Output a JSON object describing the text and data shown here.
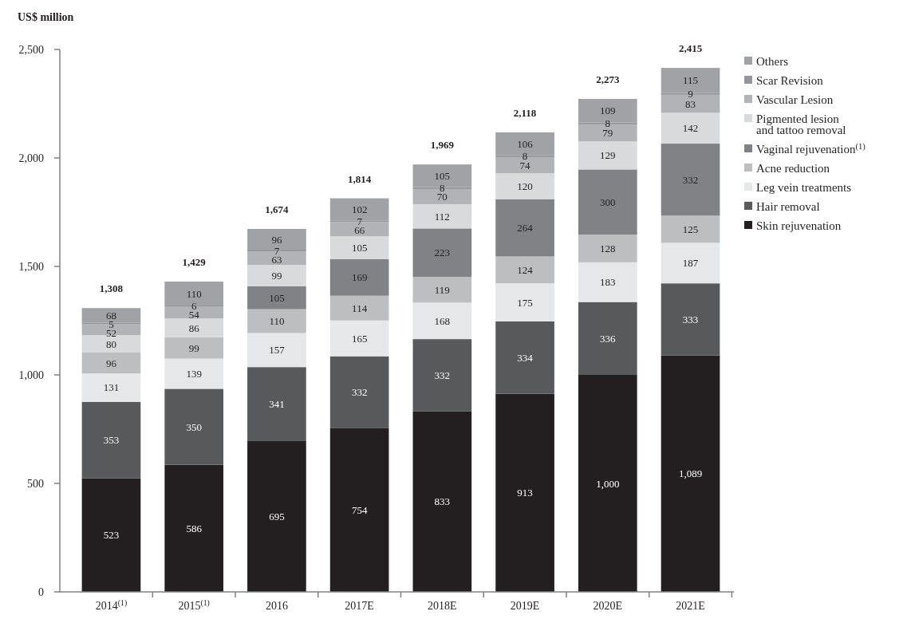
{
  "chart_data": {
    "type": "bar",
    "stacked": true,
    "ylabel": "US$ million",
    "categories": [
      "2014$^{(1)}$",
      "2015$^{(1)}$",
      "2016",
      "2017E",
      "2018E",
      "2019E",
      "2020E",
      "2021E"
    ],
    "series": [
      {
        "name": "Skin rejuvenation",
        "color": "#231f20",
        "values": [
          523,
          586,
          695,
          754,
          833,
          913,
          1000,
          1089
        ],
        "value_labels": [
          "523",
          "586",
          "695",
          "754",
          "833",
          "913",
          "1,000",
          "1,089"
        ]
      },
      {
        "name": "Hair removal",
        "color": "#58595b",
        "values": [
          353,
          350,
          341,
          332,
          332,
          334,
          336,
          333
        ],
        "value_labels": [
          "353",
          "350",
          "341",
          "332",
          "332",
          "334",
          "336",
          "333"
        ]
      },
      {
        "name": "Leg vein treatments",
        "color": "#e6e7e8",
        "values": [
          131,
          139,
          157,
          165,
          168,
          175,
          183,
          187
        ],
        "value_labels": [
          "131",
          "139",
          "157",
          "165",
          "168",
          "175",
          "183",
          "187"
        ]
      },
      {
        "name": "Acne reduction",
        "color": "#bcbec0",
        "values": [
          96,
          99,
          110,
          114,
          119,
          124,
          128,
          125
        ],
        "value_labels": [
          "96",
          "99",
          "110",
          "114",
          "119",
          "124",
          "128",
          "125"
        ]
      },
      {
        "name": "Vaginal rejuvenation$^{(1)}$",
        "color": "#808285",
        "values": [
          null,
          null,
          105,
          169,
          223,
          264,
          300,
          332
        ],
        "value_labels": [
          null,
          null,
          "105",
          "169",
          "223",
          "264",
          "300",
          "332"
        ]
      },
      {
        "name": "Pigmented lesion\nand tattoo removal",
        "color": "#d9dadb",
        "values": [
          80,
          86,
          99,
          105,
          112,
          120,
          129,
          142
        ],
        "value_labels": [
          "80",
          "86",
          "99",
          "105",
          "112",
          "120",
          "129",
          "142"
        ]
      },
      {
        "name": "Vascular Lesion",
        "color": "#b1b3b6",
        "values": [
          52,
          54,
          63,
          66,
          70,
          74,
          79,
          83
        ],
        "value_labels": [
          "52",
          "54",
          "63",
          "66",
          "70",
          "74",
          "79",
          "83"
        ]
      },
      {
        "name": "Scar Revision",
        "color": "#939598",
        "values": [
          5,
          6,
          7,
          7,
          8,
          8,
          8,
          9
        ],
        "value_labels": [
          "5",
          "6",
          "7",
          "7",
          "8",
          "8",
          "8",
          "9"
        ]
      },
      {
        "name": "Others",
        "color": "#a0a2a5",
        "values": [
          68,
          110,
          96,
          102,
          105,
          106,
          109,
          115
        ],
        "value_labels": [
          "68",
          "110",
          "96",
          "102",
          "105",
          "106",
          "109",
          "115"
        ]
      }
    ],
    "ylim": [
      0,
      2500
    ],
    "yticks": [
      {
        "value": 0,
        "label": "0"
      },
      {
        "value": 500,
        "label": "500"
      },
      {
        "value": 1000,
        "label": "1,000"
      },
      {
        "value": 1500,
        "label": "1,500"
      },
      {
        "value": 2000,
        "label": "2,000"
      },
      {
        "value": 2500,
        "label": "2,500"
      }
    ],
    "totals": [
      "1,308",
      "1,429",
      "1,674",
      "1,814",
      "1,969",
      "2,118",
      "2,273",
      "2,415"
    ],
    "legend": "right",
    "grid": false
  }
}
